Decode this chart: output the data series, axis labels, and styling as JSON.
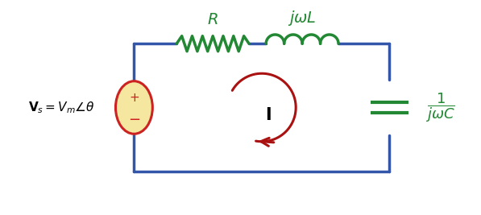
{
  "bg_color": "#ffffff",
  "circuit_color": "#3355aa",
  "resistor_color": "#228833",
  "inductor_color": "#228833",
  "capacitor_color": "#228833",
  "source_fill": "#f5e6a0",
  "source_border": "#cc2222",
  "current_arrow_color": "#aa1111",
  "text_color_black": "#000000",
  "text_color_green": "#228833",
  "label_R": "R",
  "label_L": "jωL",
  "label_C": "\\frac{1}{j\\omega C}",
  "label_Vs": "\\mathbf{V}_s = V_m \\angle \\theta",
  "label_I": "\\mathbf{I}",
  "fig_width": 5.97,
  "fig_height": 2.67,
  "dpi": 100,
  "circuit_lw": 2.5
}
